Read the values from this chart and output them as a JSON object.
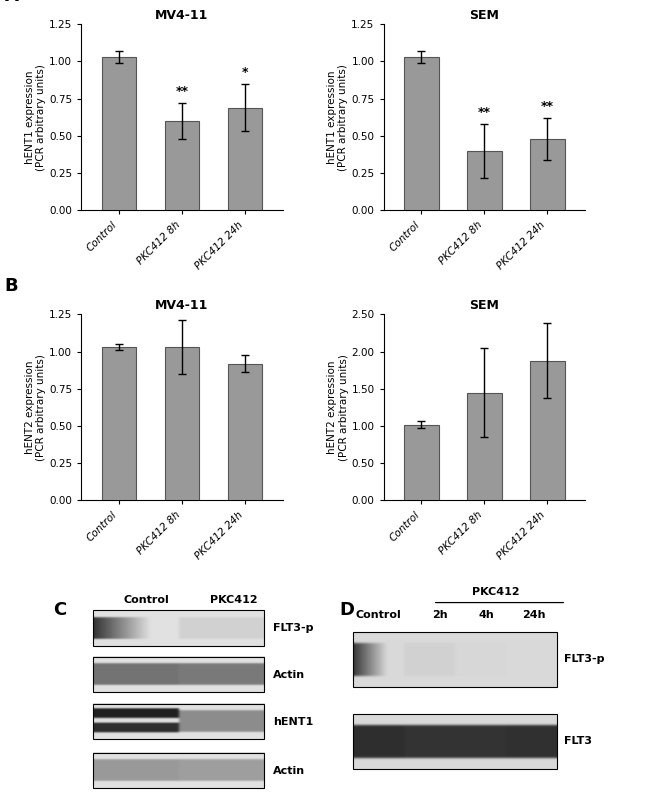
{
  "panel_A_left": {
    "title": "MV4-11",
    "ylabel": "hENT1 expression\n(PCR arbitrary units)",
    "categories": [
      "Control",
      "PKC412 8h",
      "PKC412 24h"
    ],
    "values": [
      1.03,
      0.6,
      0.69
    ],
    "errors": [
      0.04,
      0.12,
      0.16
    ],
    "sig_labels": [
      "",
      "**",
      "*"
    ],
    "ylim": [
      0,
      1.25
    ],
    "yticks": [
      0.0,
      0.25,
      0.5,
      0.75,
      1.0,
      1.25
    ]
  },
  "panel_A_right": {
    "title": "SEM",
    "ylabel": "hENT1 expression\n(PCR arbitrary units)",
    "categories": [
      "Control",
      "PKC412 8h",
      "PKC412 24h"
    ],
    "values": [
      1.03,
      0.4,
      0.48
    ],
    "errors": [
      0.04,
      0.18,
      0.14
    ],
    "sig_labels": [
      "",
      "**",
      "**"
    ],
    "ylim": [
      0,
      1.25
    ],
    "yticks": [
      0.0,
      0.25,
      0.5,
      0.75,
      1.0,
      1.25
    ]
  },
  "panel_B_left": {
    "title": "MV4-11",
    "ylabel": "hENT2 expression\n(PCR arbitrary units)",
    "categories": [
      "Control",
      "PKC412 8h",
      "PKC412 24h"
    ],
    "values": [
      1.03,
      1.03,
      0.92
    ],
    "errors": [
      0.02,
      0.18,
      0.06
    ],
    "sig_labels": [
      "",
      "",
      ""
    ],
    "ylim": [
      0,
      1.25
    ],
    "yticks": [
      0.0,
      0.25,
      0.5,
      0.75,
      1.0,
      1.25
    ]
  },
  "panel_B_right": {
    "title": "SEM",
    "ylabel": "hENT2 expression\n(PCR arbitrary units)",
    "categories": [
      "Control",
      "PKC412 8h",
      "PKC412 24h"
    ],
    "values": [
      1.02,
      1.45,
      1.88
    ],
    "errors": [
      0.05,
      0.6,
      0.5
    ],
    "sig_labels": [
      "",
      "",
      ""
    ],
    "ylim": [
      0,
      2.5
    ],
    "yticks": [
      0.0,
      0.5,
      1.0,
      1.5,
      2.0,
      2.5
    ]
  },
  "bar_color": "#999999",
  "bar_edge_color": "#555555",
  "background_color": "#ffffff"
}
